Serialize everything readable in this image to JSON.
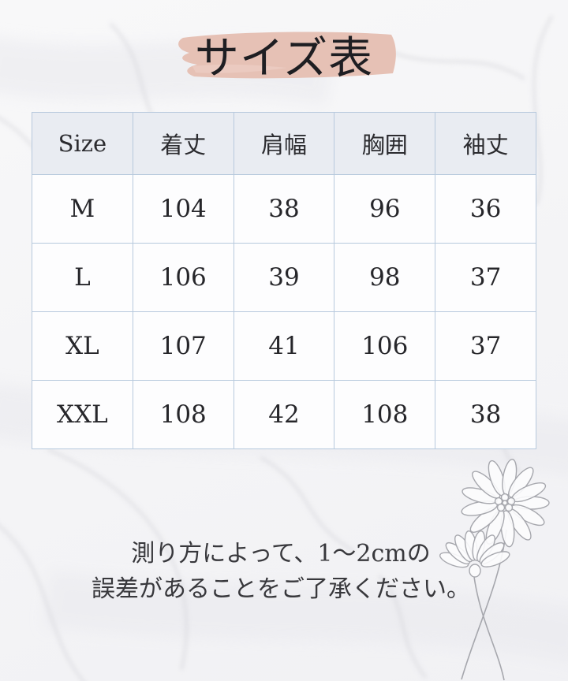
{
  "page": {
    "title": "サイズ表",
    "note_line1": "測り方によって、1〜2cmの",
    "note_line2": "誤差があることをご了承ください。"
  },
  "chart_data": {
    "type": "table",
    "title": "サイズ表",
    "columns": [
      "Size",
      "着丈",
      "肩幅",
      "胸囲",
      "袖丈"
    ],
    "rows": [
      [
        "M",
        104,
        38,
        96,
        36
      ],
      [
        "L",
        106,
        39,
        98,
        37
      ],
      [
        "XL",
        107,
        41,
        106,
        37
      ],
      [
        "XXL",
        108,
        42,
        108,
        38
      ]
    ],
    "note": "測り方によって、1〜2cmの誤差があることをご了承ください。"
  },
  "colors": {
    "brush_pink": "#e6c1b5",
    "table_border": "#b7c9dd",
    "header_bg": "#e9ecf2",
    "cell_bg": "#fdfdfe",
    "title_text": "#1e1e22",
    "body_text": "#2b2b2f",
    "flower_line": "#a6a7ad",
    "marble_vein": "#d2d2d8"
  },
  "icons": {
    "flower": "daisy-flowers-line-art",
    "brush": "paint-brush-stroke"
  }
}
